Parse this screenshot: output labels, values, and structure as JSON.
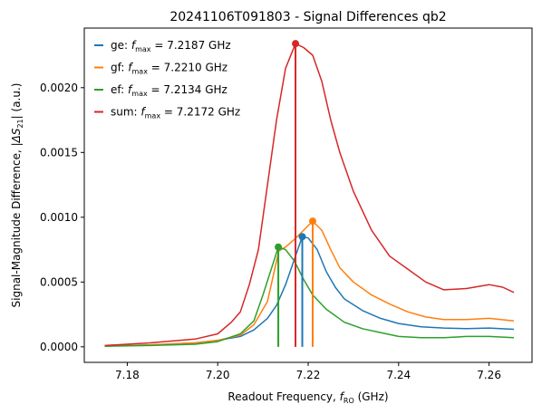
{
  "chart_data": {
    "type": "line",
    "title": "20241106T091803 - Signal Differences qb2",
    "xlabel_prefix": "Readout Frequency, ",
    "xlabel_var": "f",
    "xlabel_sub": "RO",
    "xlabel_suffix": " (GHz)",
    "ylabel_prefix": "Signal-Magnitude Difference, |",
    "ylabel_var": "ΔS",
    "ylabel_sub": "21",
    "ylabel_suffix": "| (a.u.)",
    "xlim": [
      7.1705,
      7.2695
    ],
    "ylim": [
      -0.00012,
      0.00246
    ],
    "xticks": [
      7.18,
      7.2,
      7.22,
      7.24,
      7.26
    ],
    "xtick_labels": [
      "7.18",
      "7.20",
      "7.22",
      "7.24",
      "7.26"
    ],
    "yticks": [
      0,
      0.0005,
      0.001,
      0.0015,
      0.002
    ],
    "ytick_labels": [
      "0.0000",
      "0.0005",
      "0.0010",
      "0.0015",
      "0.0020"
    ],
    "grid": false,
    "legend_position": "top-left",
    "series": [
      {
        "name_prefix": "ge: ",
        "name_suffix": " = 7.2187 GHz",
        "color": "#1f77b4",
        "peak": {
          "x": 7.2187,
          "y": 0.00085
        },
        "points": [
          [
            7.175,
            5e-06
          ],
          [
            7.185,
            1.5e-05
          ],
          [
            7.195,
            3e-05
          ],
          [
            7.2,
            5e-05
          ],
          [
            7.205,
            8e-05
          ],
          [
            7.208,
            0.00013
          ],
          [
            7.211,
            0.00022
          ],
          [
            7.213,
            0.00032
          ],
          [
            7.215,
            0.00048
          ],
          [
            7.217,
            0.00068
          ],
          [
            7.2187,
            0.00085
          ],
          [
            7.22,
            0.00084
          ],
          [
            7.222,
            0.00075
          ],
          [
            7.224,
            0.00058
          ],
          [
            7.226,
            0.00046
          ],
          [
            7.228,
            0.00037
          ],
          [
            7.232,
            0.00028
          ],
          [
            7.236,
            0.00022
          ],
          [
            7.24,
            0.00018
          ],
          [
            7.245,
            0.000155
          ],
          [
            7.25,
            0.000145
          ],
          [
            7.255,
            0.00014
          ],
          [
            7.26,
            0.000145
          ],
          [
            7.2655,
            0.000135
          ]
        ]
      },
      {
        "name_prefix": "gf: ",
        "name_suffix": " = 7.2210 GHz",
        "color": "#ff7f0e",
        "peak": {
          "x": 7.221,
          "y": 0.00097
        },
        "points": [
          [
            7.175,
            5e-06
          ],
          [
            7.185,
            1.5e-05
          ],
          [
            7.195,
            3e-05
          ],
          [
            7.2,
            5e-05
          ],
          [
            7.205,
            9e-05
          ],
          [
            7.208,
            0.00017
          ],
          [
            7.211,
            0.00035
          ],
          [
            7.2135,
            0.00074
          ],
          [
            7.215,
            0.00077
          ],
          [
            7.217,
            0.00083
          ],
          [
            7.219,
            0.0009
          ],
          [
            7.221,
            0.00097
          ],
          [
            7.223,
            0.0009
          ],
          [
            7.225,
            0.00075
          ],
          [
            7.227,
            0.00061
          ],
          [
            7.23,
            0.0005
          ],
          [
            7.234,
            0.0004
          ],
          [
            7.238,
            0.00033
          ],
          [
            7.242,
            0.00027
          ],
          [
            7.246,
            0.00023
          ],
          [
            7.25,
            0.00021
          ],
          [
            7.255,
            0.00021
          ],
          [
            7.26,
            0.00022
          ],
          [
            7.2655,
            0.0002
          ]
        ]
      },
      {
        "name_prefix": "ef: ",
        "name_suffix": " = 7.2134 GHz",
        "color": "#2ca02c",
        "peak": {
          "x": 7.2134,
          "y": 0.00077
        },
        "points": [
          [
            7.175,
            5e-06
          ],
          [
            7.185,
            1e-05
          ],
          [
            7.195,
            2e-05
          ],
          [
            7.2,
            4e-05
          ],
          [
            7.205,
            0.0001
          ],
          [
            7.208,
            0.0002
          ],
          [
            7.21,
            0.0004
          ],
          [
            7.2134,
            0.00077
          ],
          [
            7.215,
            0.00075
          ],
          [
            7.217,
            0.00066
          ],
          [
            7.219,
            0.00052
          ],
          [
            7.221,
            0.0004
          ],
          [
            7.224,
            0.00029
          ],
          [
            7.228,
            0.00019
          ],
          [
            7.232,
            0.00014
          ],
          [
            7.236,
            0.00011
          ],
          [
            7.24,
            8e-05
          ],
          [
            7.245,
            7e-05
          ],
          [
            7.25,
            7e-05
          ],
          [
            7.255,
            8e-05
          ],
          [
            7.26,
            8e-05
          ],
          [
            7.2655,
            7e-05
          ]
        ]
      },
      {
        "name_prefix": "sum: ",
        "name_suffix": " = 7.2172 GHz",
        "color": "#d62728",
        "peak": {
          "x": 7.2172,
          "y": 0.00234
        },
        "points": [
          [
            7.175,
            1e-05
          ],
          [
            7.185,
            3e-05
          ],
          [
            7.195,
            6e-05
          ],
          [
            7.2,
            0.0001
          ],
          [
            7.203,
            0.00019
          ],
          [
            7.205,
            0.00027
          ],
          [
            7.207,
            0.00048
          ],
          [
            7.209,
            0.00075
          ],
          [
            7.211,
            0.00125
          ],
          [
            7.213,
            0.00175
          ],
          [
            7.215,
            0.00215
          ],
          [
            7.2172,
            0.00234
          ],
          [
            7.219,
            0.00231
          ],
          [
            7.221,
            0.00225
          ],
          [
            7.223,
            0.00205
          ],
          [
            7.225,
            0.00175
          ],
          [
            7.227,
            0.0015
          ],
          [
            7.23,
            0.0012
          ],
          [
            7.234,
            0.0009
          ],
          [
            7.238,
            0.0007
          ],
          [
            7.242,
            0.0006
          ],
          [
            7.246,
            0.0005
          ],
          [
            7.25,
            0.00044
          ],
          [
            7.255,
            0.00045
          ],
          [
            7.26,
            0.00048
          ],
          [
            7.263,
            0.00046
          ],
          [
            7.2655,
            0.00042
          ]
        ]
      }
    ]
  }
}
